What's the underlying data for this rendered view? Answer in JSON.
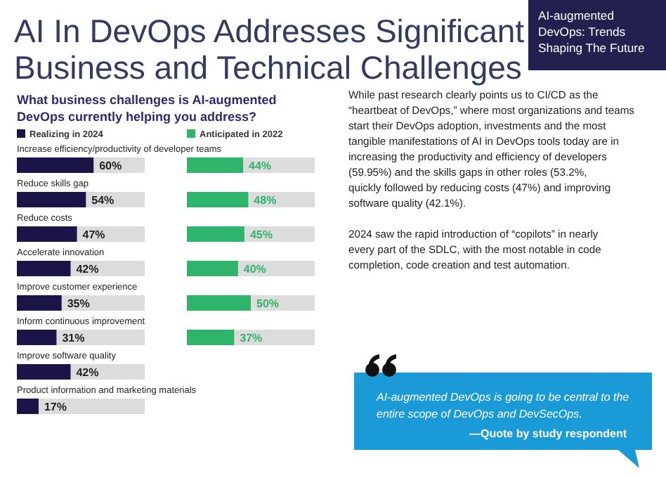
{
  "chart_data": [
    {
      "type": "bar",
      "orientation": "horizontal",
      "title": "AI In DevOps Addresses Significant Business and Technical Challenges",
      "subtitle": "What business challenges is AI-augmented DevOps currently helping you address?",
      "categories": [
        "Increase efficiency/productivity of developer teams",
        "Reduce skills gap",
        "Reduce costs",
        "Accelerate innovation",
        "Improve customer experience",
        "Inform continuous improvement",
        "Improve software quality",
        "Product information and marketing materials"
      ],
      "series": [
        {
          "name": "Realizing in 2024",
          "color": "#1b1547",
          "values": [
            60,
            54,
            47,
            42,
            35,
            31,
            42,
            17
          ],
          "value_labels": [
            "60%",
            "54%",
            "47%",
            "42%",
            "35%",
            "31%",
            "42%",
            "17%"
          ]
        }
      ],
      "xlim": [
        0,
        100
      ],
      "tick_labels": false,
      "legend": "top left",
      "annotations": [
        "AI-augmented DevOps: Trends Shaping The Future",
        "While past research clearly points us to CI/CD as the “heartbeat of DevOps,” where most organizations and teams start their DevOps adoption, investments and the most tangible manifestations of AI in DevOps tools today are in increasing the productivity and efficiency of developers (59.95%) and the skills gaps in other roles (53.2%, quickly followed by reducing costs (47%) and improving software quality (42.1%).",
        "2024 saw the rapid introduction of “copilots” in nearly every part of the SDLC, with the most notable in code completion, code creation and test automation.",
        "AI-augmented DevOps is going to be central to the entire scope of DevOps and DevSecOps.",
        "—Quote by study respondent"
      ]
    },
    {
      "type": "bar",
      "orientation": "horizontal",
      "categories": [
        null,
        null,
        null,
        null,
        null,
        null
      ],
      "series": [
        {
          "name": "Anticipated in 2022",
          "color": "#2fb46c",
          "values": [
            44,
            48,
            45,
            40,
            50,
            37
          ],
          "value_labels": [
            "44%",
            "48%",
            "45%",
            "40%",
            "50%",
            "37%"
          ]
        }
      ],
      "xlim": [
        0,
        100
      ],
      "tick_labels": false,
      "legend": "top left"
    }
  ]
}
